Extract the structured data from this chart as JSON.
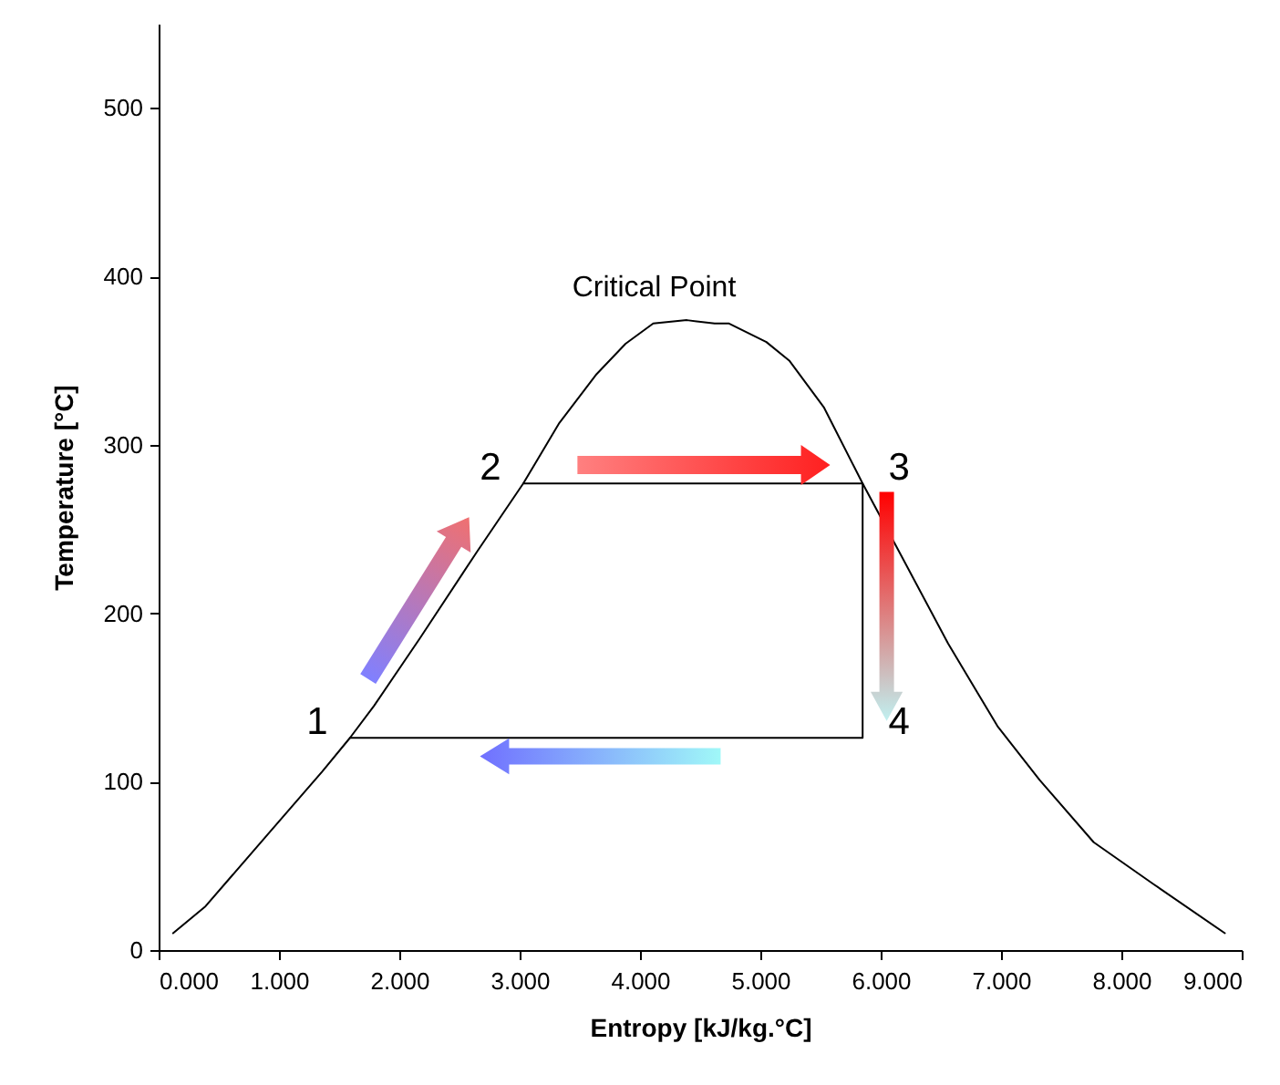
{
  "chart_data": {
    "type": "line",
    "xlabel": "Entropy [kJ/kg.°C]",
    "ylabel": "Temperature [°C]",
    "xlim": [
      0,
      9
    ],
    "ylim": [
      0,
      550
    ],
    "xticks": [
      {
        "value": 0,
        "label": "0.000"
      },
      {
        "value": 1,
        "label": "1.000"
      },
      {
        "value": 2,
        "label": "2.000"
      },
      {
        "value": 3,
        "label": "3.000"
      },
      {
        "value": 4,
        "label": "4.000"
      },
      {
        "value": 5,
        "label": "5.000"
      },
      {
        "value": 6,
        "label": "6.000"
      },
      {
        "value": 7,
        "label": "7.000"
      },
      {
        "value": 8,
        "label": "8.000"
      },
      {
        "value": 9,
        "label": "9.000"
      }
    ],
    "yticks": [
      0,
      100,
      200,
      300,
      400,
      500
    ],
    "grid": false,
    "marker": "none",
    "line_style": "solid",
    "series": [
      {
        "color": "#000000",
        "x": [
          0.12,
          0.39,
          0.91,
          1.36,
          1.59,
          1.79,
          2.17,
          2.65,
          3.03,
          3.33,
          3.64,
          3.88,
          4.11,
          4.39,
          4.62,
          4.74,
          5.05,
          5.24,
          5.53,
          5.85,
          6.15,
          6.56,
          6.97,
          7.32,
          7.77,
          8.27,
          8.86
        ],
        "values": [
          10,
          26,
          69,
          106,
          126,
          145,
          185,
          237,
          277,
          313,
          342,
          360,
          372,
          374,
          372,
          372,
          361,
          350,
          322,
          277,
          237,
          182,
          133,
          101,
          64,
          39,
          10
        ]
      },
      {
        "color": "#000000",
        "x": [
          1.59,
          5.85,
          5.85,
          3.03
        ],
        "values": [
          126,
          126,
          277,
          277
        ]
      }
    ],
    "annotations": [
      {
        "text": "Critical Point",
        "x": 4.39,
        "y": 374
      },
      {
        "text": "1",
        "x": 1.59,
        "y": 126
      },
      {
        "text": "2",
        "x": 3.03,
        "y": 277
      },
      {
        "text": "3",
        "x": 5.85,
        "y": 277
      },
      {
        "text": "4",
        "x": 5.85,
        "y": 126
      }
    ]
  }
}
